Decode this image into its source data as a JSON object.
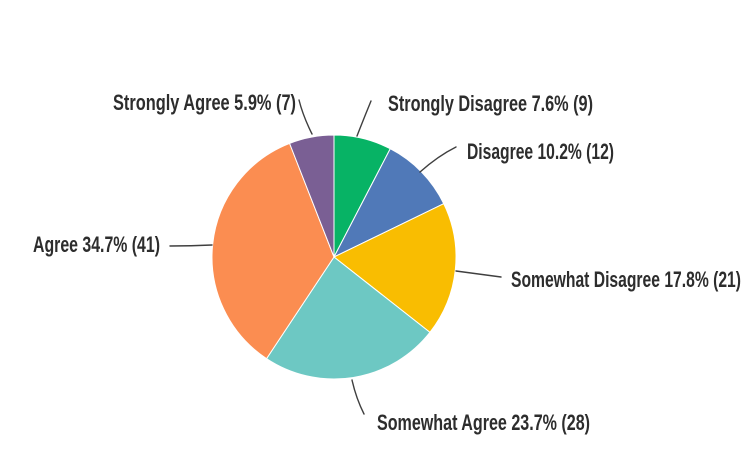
{
  "chart_data": {
    "type": "pie",
    "title": "",
    "legend": "none",
    "label_style": "callout",
    "direction": "clockwise",
    "start_angle_deg": 0,
    "background": "#ffffff",
    "text_color": "#2d2d2d",
    "line_color": "#3f3f3f",
    "slices": [
      {
        "label": "Strongly Disagree",
        "pct": 7.6,
        "count": 9,
        "color": "#07b365",
        "callout_text": "Strongly Disagree 7.6% (9)"
      },
      {
        "label": "Disagree",
        "pct": 10.2,
        "count": 12,
        "color": "#5079b8",
        "callout_text": "Disagree 10.2% (12)"
      },
      {
        "label": "Somewhat Disagree",
        "pct": 17.8,
        "count": 21,
        "color": "#f9bd01",
        "callout_text": "Somewhat Disagree 17.8% (21)"
      },
      {
        "label": "Somewhat Agree",
        "pct": 23.7,
        "count": 28,
        "color": "#6dc8c3",
        "callout_text": "Somewhat Agree 23.7% (28)"
      },
      {
        "label": "Agree",
        "pct": 34.7,
        "count": 41,
        "color": "#fb8d51",
        "callout_text": "Agree 34.7% (41)"
      },
      {
        "label": "Strongly Agree",
        "pct": 5.9,
        "count": 7,
        "color": "#7a5f94",
        "callout_text": "Strongly Agree 5.9% (7)"
      }
    ]
  }
}
